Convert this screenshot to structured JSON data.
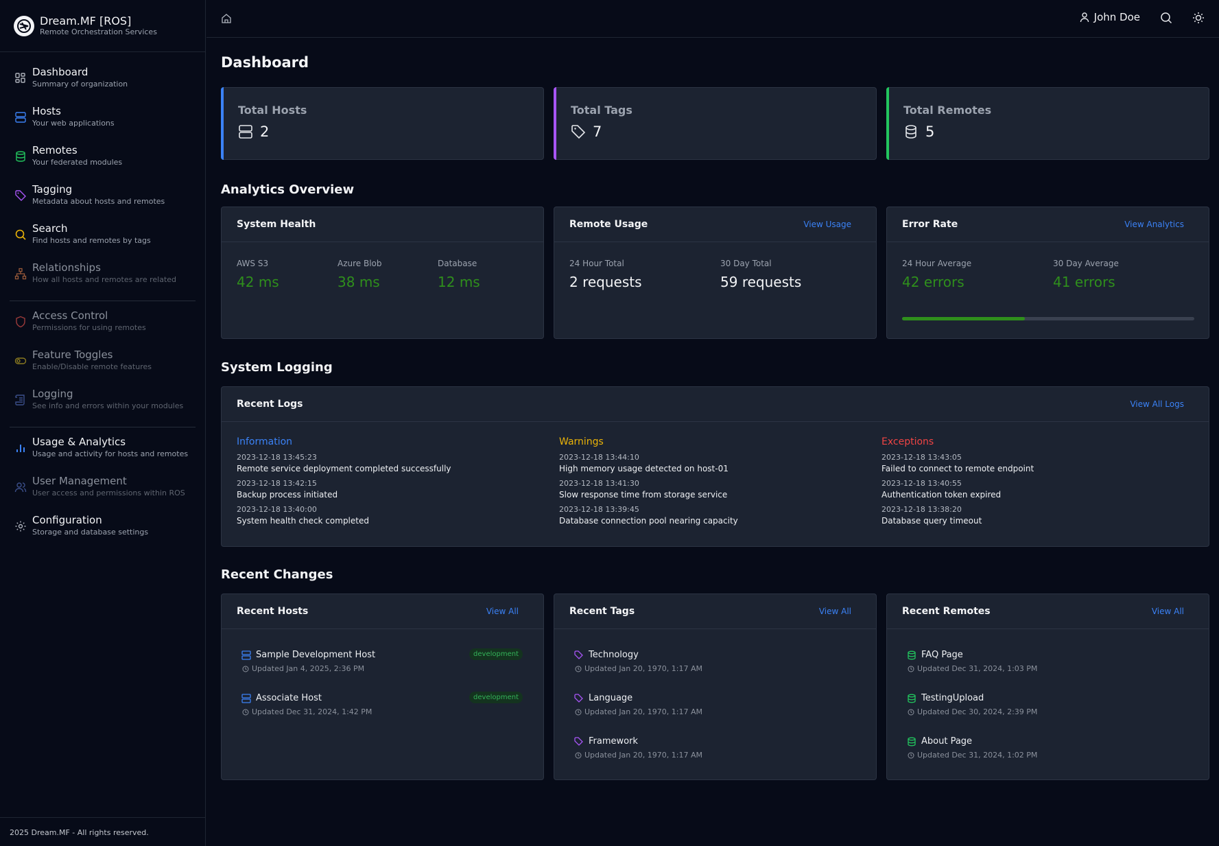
{
  "brand": {
    "title": "Dream.MF [ROS]",
    "subtitle": "Remote Orchestration Services"
  },
  "nav": [
    {
      "label": "Dashboard",
      "desc": "Summary of organization"
    },
    {
      "label": "Hosts",
      "desc": "Your web applications"
    },
    {
      "label": "Remotes",
      "desc": "Your federated modules"
    },
    {
      "label": "Tagging",
      "desc": "Metadata about hosts and remotes"
    },
    {
      "label": "Search",
      "desc": "Find hosts and remotes by tags"
    },
    {
      "label": "Relationships",
      "desc": "How all hosts and remotes are related"
    },
    {
      "label": "Access Control",
      "desc": "Permissions for using remotes"
    },
    {
      "label": "Feature Toggles",
      "desc": "Enable/Disable remote features"
    },
    {
      "label": "Logging",
      "desc": "See info and errors within your modules"
    },
    {
      "label": "Usage & Analytics",
      "desc": "Usage and activity for hosts and remotes"
    },
    {
      "label": "User Management",
      "desc": "User access and permissions within ROS"
    },
    {
      "label": "Configuration",
      "desc": "Storage and database settings"
    }
  ],
  "footer": "2025 Dream.MF - All rights reserved.",
  "topbar": {
    "user": "John Doe"
  },
  "page_title": "Dashboard",
  "stats": [
    {
      "label": "Total Hosts",
      "value": "2",
      "color": "#3b82f6"
    },
    {
      "label": "Total Tags",
      "value": "7",
      "color": "#a855f7"
    },
    {
      "label": "Total Remotes",
      "value": "5",
      "color": "#22c55e"
    }
  ],
  "analytics": {
    "title": "Analytics Overview",
    "health": {
      "title": "System Health",
      "metrics": [
        {
          "label": "AWS S3",
          "value": "42",
          "unit": "ms"
        },
        {
          "label": "Azure Blob",
          "value": "38",
          "unit": "ms"
        },
        {
          "label": "Database",
          "value": "12",
          "unit": "ms"
        }
      ]
    },
    "usage": {
      "title": "Remote Usage",
      "link": "View Usage",
      "metrics": [
        {
          "label": "24 Hour Total",
          "value": "2",
          "unit": "requests"
        },
        {
          "label": "30 Day Total",
          "value": "59",
          "unit": "requests"
        }
      ]
    },
    "errors": {
      "title": "Error Rate",
      "link": "View Analytics",
      "metrics": [
        {
          "label": "24 Hour Average",
          "value": "42",
          "unit": "errors"
        },
        {
          "label": "30 Day Average",
          "value": "41",
          "unit": "errors"
        }
      ],
      "progress": 0.42
    }
  },
  "logging": {
    "title": "System Logging",
    "card_title": "Recent Logs",
    "link": "View All Logs",
    "columns": [
      {
        "title": "Information",
        "color": "#3b82f6",
        "entries": [
          {
            "ts": "2023-12-18 13:45:23",
            "msg": "Remote service deployment completed successfully"
          },
          {
            "ts": "2023-12-18 13:42:15",
            "msg": "Backup process initiated"
          },
          {
            "ts": "2023-12-18 13:40:00",
            "msg": "System health check completed"
          }
        ]
      },
      {
        "title": "Warnings",
        "color": "#eab308",
        "entries": [
          {
            "ts": "2023-12-18 13:44:10",
            "msg": "High memory usage detected on host-01"
          },
          {
            "ts": "2023-12-18 13:41:30",
            "msg": "Slow response time from storage service"
          },
          {
            "ts": "2023-12-18 13:39:45",
            "msg": "Database connection pool nearing capacity"
          }
        ]
      },
      {
        "title": "Exceptions",
        "color": "#ef4444",
        "entries": [
          {
            "ts": "2023-12-18 13:43:05",
            "msg": "Failed to connect to remote endpoint"
          },
          {
            "ts": "2023-12-18 13:40:55",
            "msg": "Authentication token expired"
          },
          {
            "ts": "2023-12-18 13:38:20",
            "msg": "Database query timeout"
          }
        ]
      }
    ]
  },
  "changes": {
    "title": "Recent Changes",
    "hosts": {
      "title": "Recent Hosts",
      "link": "View All",
      "items": [
        {
          "name": "Sample Development Host",
          "updated": "Updated Jan 4, 2025, 2:36 PM",
          "badge": "development"
        },
        {
          "name": "Associate Host",
          "updated": "Updated Dec 31, 2024, 1:42 PM",
          "badge": "development"
        }
      ]
    },
    "tags": {
      "title": "Recent Tags",
      "link": "View All",
      "items": [
        {
          "name": "Technology",
          "updated": "Updated Jan 20, 1970, 1:17 AM"
        },
        {
          "name": "Language",
          "updated": "Updated Jan 20, 1970, 1:17 AM"
        },
        {
          "name": "Framework",
          "updated": "Updated Jan 20, 1970, 1:17 AM"
        }
      ]
    },
    "remotes": {
      "title": "Recent Remotes",
      "link": "View All",
      "items": [
        {
          "name": "FAQ Page",
          "updated": "Updated Dec 31, 2024, 1:03 PM"
        },
        {
          "name": "TestingUpload",
          "updated": "Updated Dec 30, 2024, 2:39 PM"
        },
        {
          "name": "About Page",
          "updated": "Updated Dec 31, 2024, 1:02 PM"
        }
      ]
    }
  }
}
